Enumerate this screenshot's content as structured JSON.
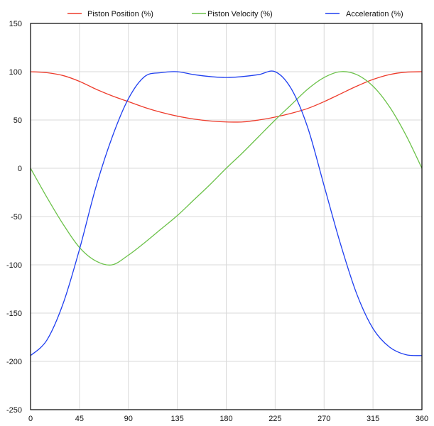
{
  "chart_data": {
    "type": "line",
    "title": "",
    "xlabel": "",
    "ylabel": "",
    "xlim": [
      0,
      360
    ],
    "ylim": [
      -250,
      150
    ],
    "x_ticks": [
      0,
      45,
      90,
      135,
      180,
      225,
      270,
      315,
      360
    ],
    "y_ticks": [
      -250,
      -200,
      -150,
      -100,
      -50,
      0,
      50,
      100,
      150
    ],
    "grid": true,
    "legend_position": "top",
    "x": [
      0,
      15,
      30,
      45,
      60,
      75,
      90,
      105,
      120,
      135,
      150,
      165,
      180,
      195,
      210,
      225,
      240,
      255,
      270,
      285,
      300,
      315,
      330,
      345,
      360
    ],
    "series": [
      {
        "name": "Piston Position (%)",
        "color": "#ee3b2b",
        "values": [
          100,
          99,
          96,
          90,
          82,
          75,
          69,
          63,
          58,
          54,
          51,
          49,
          48,
          48,
          50,
          53,
          57,
          62,
          69,
          77,
          85,
          92,
          97,
          99.5,
          100
        ]
      },
      {
        "name": "Piston Velocity (%)",
        "color": "#6cc24a",
        "values": [
          0,
          -30,
          -58,
          -82,
          -96,
          -100,
          -90,
          -77,
          -63,
          -49,
          -33,
          -17,
          0,
          16,
          33,
          50,
          66,
          82,
          94,
          100,
          97,
          85,
          64,
          35,
          0
        ]
      },
      {
        "name": "Acceleration (%)",
        "color": "#1f3ff0",
        "values": [
          -194,
          -178,
          -140,
          -84,
          -20,
          32,
          72,
          95,
          99,
          100,
          97,
          95,
          94,
          95,
          97,
          100,
          82,
          42,
          -18,
          -78,
          -130,
          -166,
          -185,
          -193,
          -194
        ]
      }
    ]
  }
}
